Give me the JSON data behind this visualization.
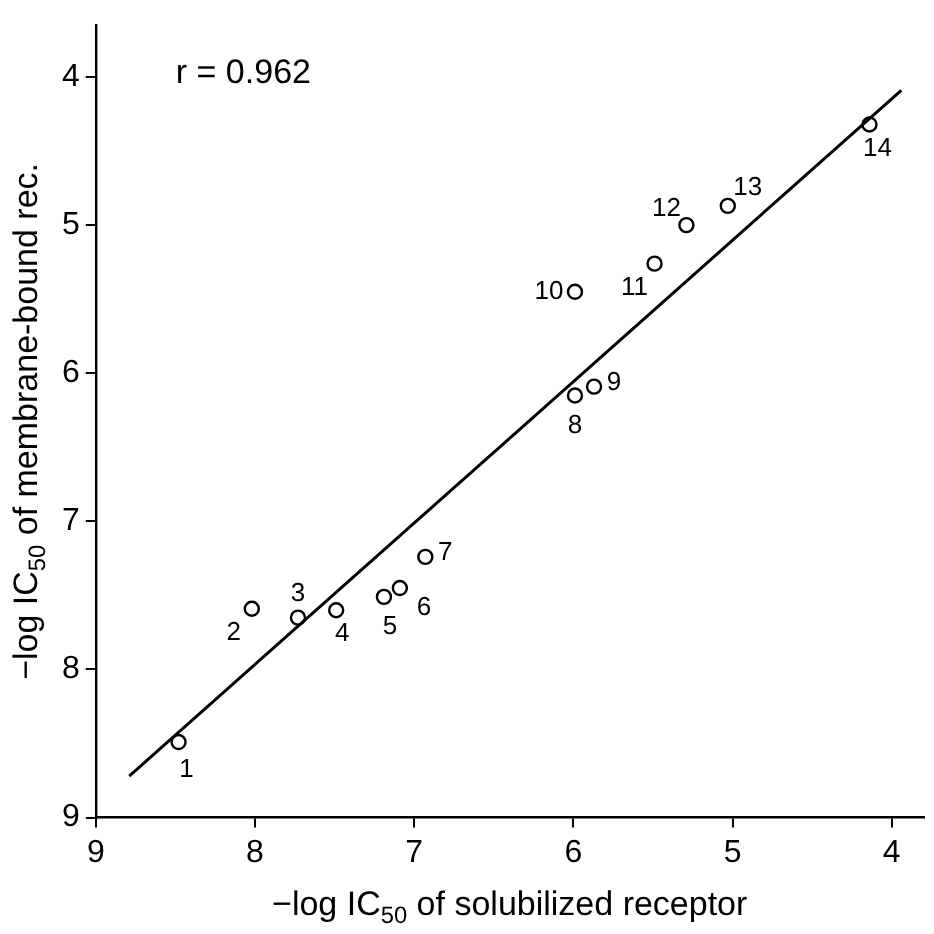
{
  "chart_data": {
    "type": "scatter",
    "xlabel": "−log IC$_{50}$ of solubilized receptor",
    "ylabel": "−log IC$_{50}$ of membrane-bound rec.",
    "x": [
      8.48,
      8.02,
      7.73,
      7.49,
      7.19,
      7.09,
      6.93,
      5.99,
      5.87,
      5.99,
      5.49,
      5.29,
      5.03,
      4.14
    ],
    "series": [
      {
        "type": "scatter",
        "color": "#000000",
        "marker": "circle",
        "values": [
          8.49,
          7.59,
          7.65,
          7.6,
          7.51,
          7.45,
          7.24,
          6.15,
          6.09,
          5.45,
          5.26,
          5.0,
          4.87,
          4.32
        ]
      },
      {
        "type": "line",
        "color": "#000000",
        "marker": "none",
        "line_style": "solid",
        "x": [
          8.79,
          3.94
        ],
        "values": [
          8.72,
          4.09
        ]
      }
    ],
    "xlim": [
      9,
      3.8
    ],
    "xticks": [
      9,
      8,
      7,
      6,
      5,
      4
    ],
    "ylim": [
      9,
      3.65
    ],
    "yticks": [
      9,
      8,
      7,
      6,
      5,
      4
    ],
    "grid": false,
    "legend": false,
    "annotations": [
      "r = 0.962",
      {
        "text": "1",
        "x": 8.48,
        "y": 8.49
      },
      {
        "text": "2",
        "x": 8.02,
        "y": 7.59
      },
      {
        "text": "3",
        "x": 7.73,
        "y": 7.65
      },
      {
        "text": "4",
        "x": 7.49,
        "y": 7.6
      },
      {
        "text": "5",
        "x": 7.19,
        "y": 7.51
      },
      {
        "text": "6",
        "x": 7.09,
        "y": 7.45
      },
      {
        "text": "7",
        "x": 6.93,
        "y": 7.24
      },
      {
        "text": "8",
        "x": 5.99,
        "y": 6.15
      },
      {
        "text": "9",
        "x": 5.87,
        "y": 6.09
      },
      {
        "text": "10",
        "x": 5.99,
        "y": 5.45
      },
      {
        "text": "11",
        "x": 5.49,
        "y": 5.26
      },
      {
        "text": "12",
        "x": 5.29,
        "y": 5.0
      },
      {
        "text": "13",
        "x": 5.03,
        "y": 4.87
      },
      {
        "text": "14",
        "x": 4.14,
        "y": 4.32
      }
    ]
  }
}
